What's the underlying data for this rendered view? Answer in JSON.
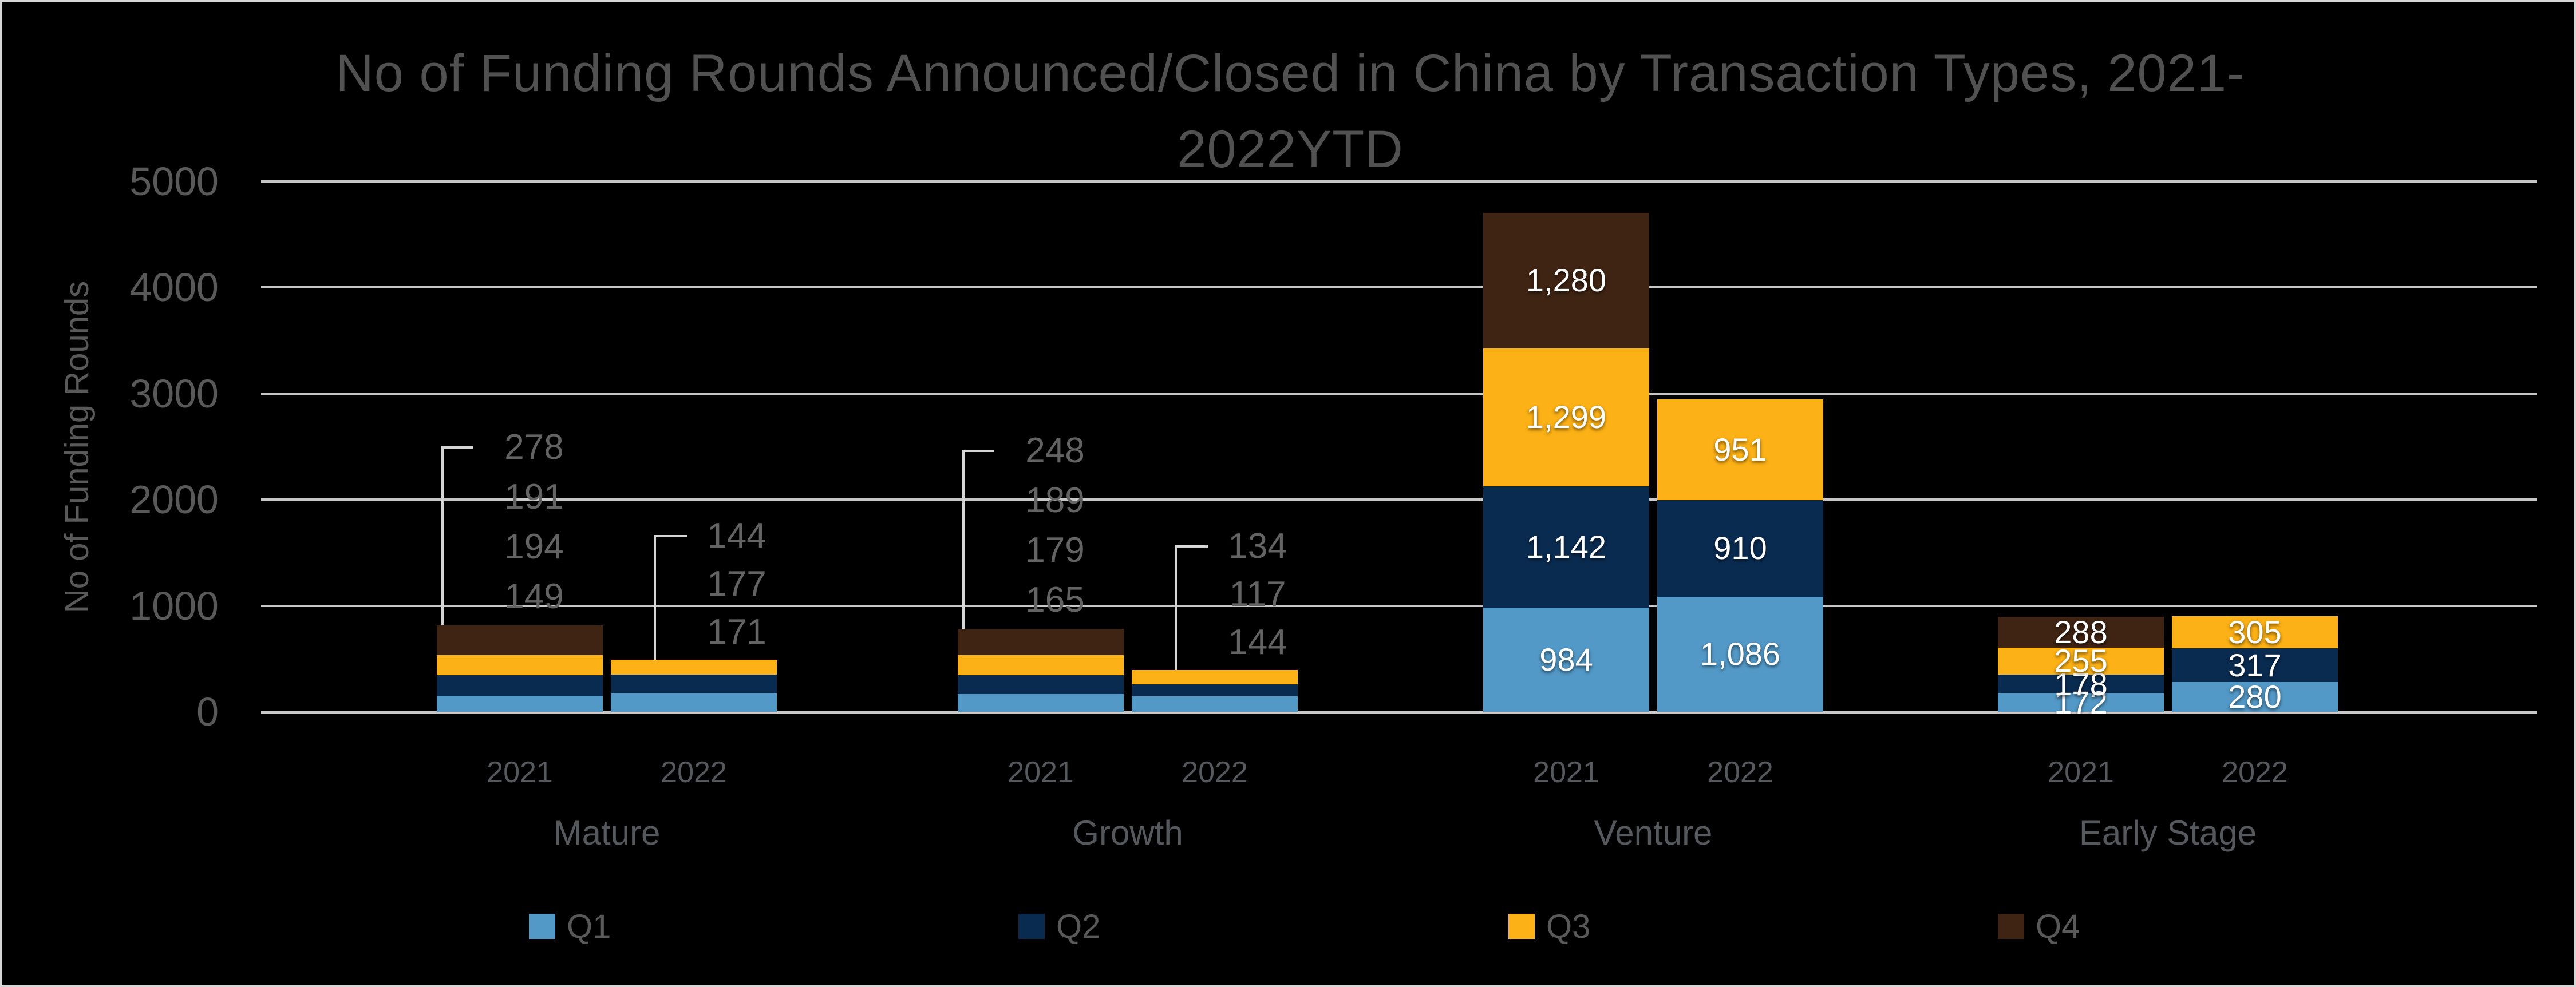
{
  "title": {
    "line1": "No of Funding Rounds Announced/Closed in China by Transaction Types, 2021-",
    "line2": "2022YTD"
  },
  "chart_data": {
    "type": "bar",
    "subtype": "stacked-grouped",
    "title": "No of Funding Rounds Announced/Closed in China by Transaction Types, 2021-2022YTD",
    "ylabel": "No of Funding Rounds",
    "ylim": [
      0,
      5000
    ],
    "yticks": [
      0,
      1000,
      2000,
      3000,
      4000,
      5000
    ],
    "grid": "horizontal",
    "legend_position": "bottom",
    "series_order": [
      "Q1",
      "Q2",
      "Q3",
      "Q4"
    ],
    "colors": {
      "Q1": "#5399C7",
      "Q2": "#0A2B50",
      "Q3": "#FCB116",
      "Q4": "#3F2413",
      "background": "#000000",
      "gridline": "#C6C6C6",
      "inside_label": "#FFFFFF",
      "callout_label": "#636363",
      "axis_text": "#595959"
    },
    "legend": [
      {
        "label": "Q1",
        "series": "Q1"
      },
      {
        "label": "Q2",
        "series": "Q2"
      },
      {
        "label": "Q3",
        "series": "Q3"
      },
      {
        "label": "Q4",
        "series": "Q4"
      }
    ],
    "groups": [
      {
        "label": "Mature",
        "label_style": "callout",
        "bars": [
          {
            "year": "2021",
            "values": {
              "Q1": 149,
              "Q2": 194,
              "Q3": 191,
              "Q4": 278
            }
          },
          {
            "year": "2022",
            "values": {
              "Q1": 171,
              "Q2": 177,
              "Q3": 144
            }
          }
        ]
      },
      {
        "label": "Growth",
        "label_style": "callout",
        "bars": [
          {
            "year": "2021",
            "values": {
              "Q1": 165,
              "Q2": 179,
              "Q3": 189,
              "Q4": 248
            }
          },
          {
            "year": "2022",
            "values": {
              "Q1": 144,
              "Q2": 117,
              "Q3": 134
            }
          }
        ]
      },
      {
        "label": "Venture",
        "label_style": "inside",
        "bars": [
          {
            "year": "2021",
            "values": {
              "Q1": 984,
              "Q2": 1142,
              "Q3": 1299,
              "Q4": 1280
            }
          },
          {
            "year": "2022",
            "values": {
              "Q1": 1086,
              "Q2": 910,
              "Q3": 951
            }
          }
        ]
      },
      {
        "label": "Early Stage",
        "label_style": "inside",
        "bars": [
          {
            "year": "2021",
            "values": {
              "Q1": 172,
              "Q2": 178,
              "Q3": 255,
              "Q4": 288
            }
          },
          {
            "year": "2022",
            "values": {
              "Q1": 280,
              "Q2": 317,
              "Q3": 305
            }
          }
        ]
      }
    ]
  }
}
